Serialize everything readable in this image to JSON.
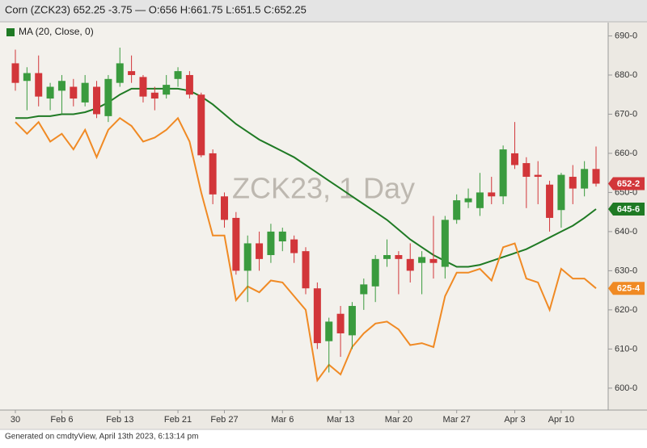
{
  "chart_data": {
    "type": "candlestick",
    "title": "Corn (ZCK23) 652.25 -3.75 — O:656 H:661.75 L:651.5 C:652.25",
    "watermark": "ZCK23, 1 Day",
    "footer": "Generated on cmdtyView, April 13th 2023, 6:13:14 pm",
    "categories": [
      "30",
      null,
      null,
      null,
      "Feb 6",
      null,
      null,
      null,
      null,
      "Feb 13",
      null,
      null,
      null,
      null,
      "Feb 21",
      null,
      null,
      null,
      "Feb 27",
      null,
      null,
      null,
      null,
      "Mar 6",
      null,
      null,
      null,
      null,
      "Mar 13",
      null,
      null,
      null,
      null,
      "Mar 20",
      null,
      null,
      null,
      null,
      "Mar 27",
      null,
      null,
      null,
      null,
      "Apr 3",
      null,
      null,
      null,
      "Apr 10",
      null,
      null,
      null
    ],
    "open": [
      683,
      678.5,
      680.5,
      674,
      676,
      677,
      673,
      677,
      669.5,
      678,
      681,
      679.5,
      675.5,
      675,
      679,
      680,
      675,
      660,
      649,
      643.5,
      630,
      637,
      634,
      637.5,
      638,
      635,
      625.5,
      612,
      619,
      613.5,
      624,
      626,
      633,
      634,
      633,
      632,
      633,
      631,
      643,
      647.5,
      646,
      650,
      649,
      660,
      657.5,
      654.5,
      652,
      645.5,
      654,
      651,
      656
    ],
    "high": [
      686.5,
      682,
      685,
      678,
      680,
      679,
      680,
      678.5,
      680,
      687,
      685,
      680,
      677,
      680,
      682,
      681,
      675.5,
      661,
      650,
      645,
      639,
      640,
      642,
      641,
      639,
      636,
      627,
      618,
      621,
      622,
      628,
      634,
      638,
      635,
      637,
      635,
      644,
      644,
      649.5,
      651,
      655,
      654,
      662,
      668,
      659,
      658,
      653,
      655,
      657,
      658,
      661.75
    ],
    "low": [
      676,
      671,
      672,
      671,
      670,
      672,
      672,
      669,
      668,
      677,
      678,
      673,
      671,
      674,
      677,
      674,
      659,
      647,
      641,
      629,
      622,
      630,
      632,
      635,
      632,
      624,
      610,
      604,
      608,
      610,
      620,
      622,
      631,
      624,
      627,
      624,
      628,
      628,
      642,
      646,
      644,
      647,
      647,
      656,
      646,
      647,
      640,
      641,
      647,
      649,
      651.5
    ],
    "close": [
      678,
      680.5,
      674.5,
      677,
      678.5,
      674,
      678,
      670,
      679,
      683,
      680,
      674.5,
      674,
      677.5,
      681,
      675,
      659.5,
      649.5,
      643,
      630,
      637,
      633,
      640,
      640,
      634.5,
      625.5,
      611.5,
      617,
      614,
      621,
      626.5,
      633,
      634,
      633,
      630,
      633.5,
      632,
      643,
      648,
      648.5,
      650,
      649,
      661,
      657,
      654,
      654,
      643.5,
      654.5,
      651,
      656,
      652.25
    ],
    "up_color": "#3a9b3e",
    "down_color": "#d2363a",
    "last_label": "652-2",
    "overlays": [
      {
        "name": "MA (20, Close, 0)",
        "color": "#1f7a24",
        "values": [
          669,
          669,
          669.5,
          669.5,
          670,
          670,
          670.5,
          671.5,
          673,
          675,
          676.5,
          676.5,
          676.5,
          676.5,
          676.5,
          676,
          674.5,
          672.5,
          670,
          667.5,
          665.5,
          663.5,
          662,
          660.5,
          659,
          657,
          655,
          653,
          651,
          649,
          647,
          645,
          643,
          640.5,
          638,
          636,
          634,
          632.5,
          631,
          631,
          631.5,
          632.5,
          633.5,
          634.5,
          635.5,
          637,
          638.5,
          640,
          641.5,
          643.5,
          645.75
        ],
        "last_label": "645-6"
      },
      {
        "color": "#f08a24",
        "values": [
          668,
          665,
          668,
          663,
          665,
          661,
          666,
          659,
          666,
          669,
          667,
          663,
          664,
          666,
          669,
          663,
          650,
          639,
          639,
          622.5,
          626,
          624.5,
          627.5,
          627,
          623.5,
          620,
          602,
          606,
          603.5,
          610.5,
          614,
          616.5,
          617,
          615,
          611,
          611.5,
          610.5,
          623.5,
          629.5,
          629.5,
          630.5,
          627.5,
          636,
          637,
          628,
          627,
          620,
          630.5,
          628,
          628,
          625.5
        ],
        "last_label": "625-4"
      }
    ],
    "ylim": [
      594.4,
      693.4
    ],
    "yticks": [
      {
        "value": 600,
        "label": "600-0"
      },
      {
        "value": 610,
        "label": "610-0"
      },
      {
        "value": 620,
        "label": "620-0"
      },
      {
        "value": 630,
        "label": "630-0"
      },
      {
        "value": 640,
        "label": "640-0"
      },
      {
        "value": 650,
        "label": "650-0"
      },
      {
        "value": 660,
        "label": "660-0"
      },
      {
        "value": 670,
        "label": "670-0"
      },
      {
        "value": 680,
        "label": "680-0"
      },
      {
        "value": 690,
        "label": "690-0"
      }
    ],
    "legend": "top-left"
  }
}
